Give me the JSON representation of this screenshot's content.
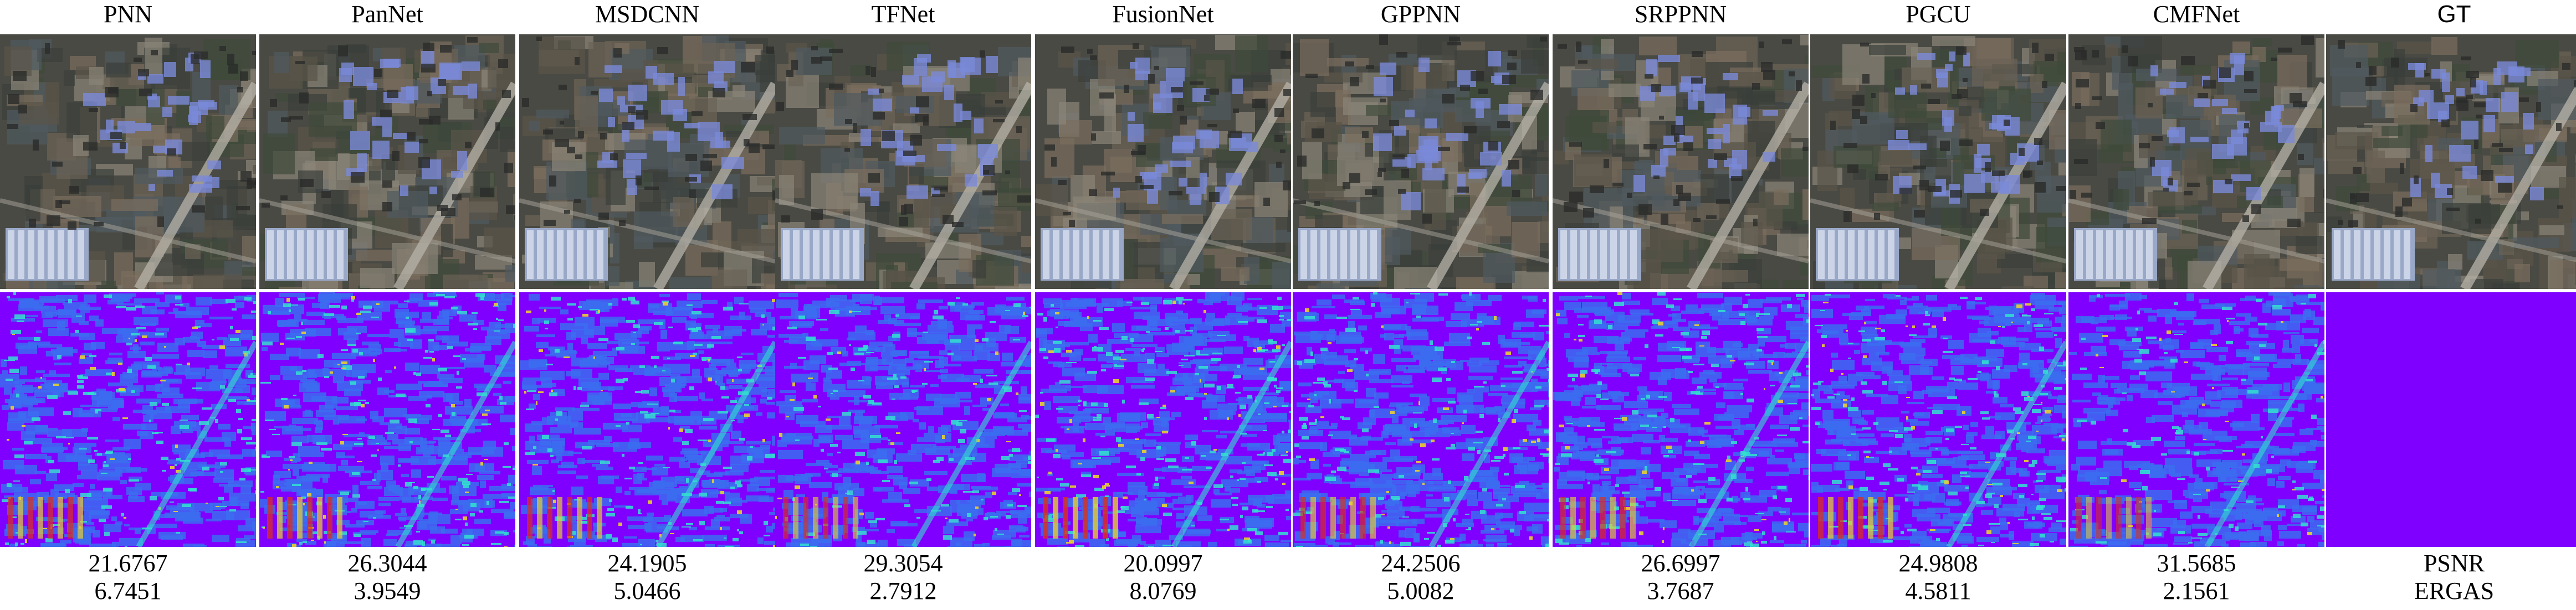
{
  "columns": [
    {
      "title": "PNN",
      "psnr": "21.6767",
      "ergas": "6.7451",
      "error_level": 0.55
    },
    {
      "title": "PanNet",
      "psnr": "26.3044",
      "ergas": "3.9549",
      "error_level": 0.6
    },
    {
      "title": "MSDCNN",
      "psnr": "24.1905",
      "ergas": "5.0466",
      "error_level": 0.55
    },
    {
      "title": "TFNet",
      "psnr": "29.3054",
      "ergas": "2.7912",
      "error_level": 0.45
    },
    {
      "title": "FusionNet",
      "psnr": "20.0997",
      "ergas": "8.0769",
      "error_level": 0.7
    },
    {
      "title": "GPPNN",
      "psnr": "24.2506",
      "ergas": "5.0082",
      "error_level": 0.5
    },
    {
      "title": "SRPPNN",
      "psnr": "26.6997",
      "ergas": "3.7687",
      "error_level": 0.5
    },
    {
      "title": "PGCU",
      "psnr": "24.9808",
      "ergas": "4.5811",
      "error_level": 0.6
    },
    {
      "title": "CMFNet",
      "psnr": "31.5685",
      "ergas": "2.1561",
      "error_level": 0.35
    },
    {
      "title": "GT",
      "psnr": "PSNR",
      "ergas": "ERGAS",
      "error_level": 0
    }
  ],
  "colors": {
    "zero_error": "#7f00ff",
    "low_error": "#3b6cf0",
    "mid_error": "#33e0d0",
    "high_error": "#e8d030",
    "max_error": "#e03010"
  }
}
